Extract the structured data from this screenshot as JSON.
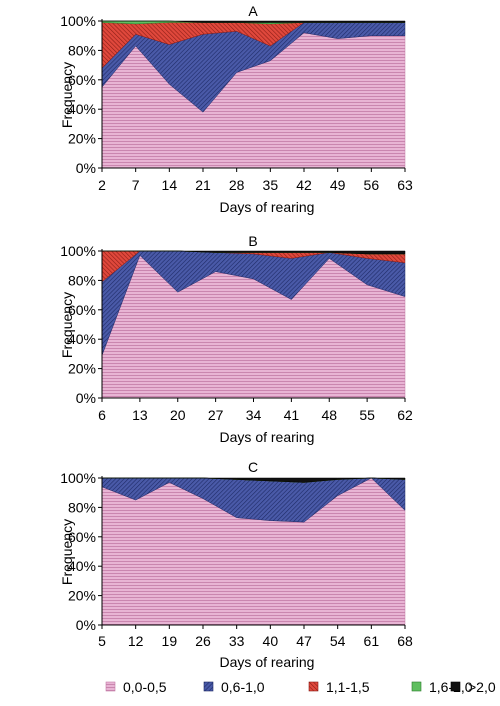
{
  "ylabel": "Frequency",
  "xlabel": "Days of rearing",
  "y_ticks": [
    "0%",
    "20%",
    "40%",
    "60%",
    "80%",
    "100%"
  ],
  "legend": [
    {
      "label": "0,0-0,5",
      "color": "#e8b4d4",
      "line": "#c37aa6",
      "pattern": "hlines"
    },
    {
      "label": "0,6-1,0",
      "color": "#4a5aa8",
      "line": "#1e2a66",
      "pattern": "diag-down"
    },
    {
      "label": "1,1-1,5",
      "color": "#e0483c",
      "line": "#8c1d16",
      "pattern": "diag-up"
    },
    {
      "label": "1,6-2,0",
      "color": "#5fbf5f",
      "line": "#2a7a2a",
      "pattern": "solid"
    },
    {
      "label": ">2,0",
      "color": "#111111",
      "line": "#000000",
      "pattern": "solid"
    }
  ],
  "chart_data": [
    {
      "type": "area",
      "title": "A",
      "x": [
        2,
        7,
        14,
        21,
        28,
        35,
        42,
        49,
        56,
        63
      ],
      "series": [
        {
          "name": "0,0-0,5",
          "values": [
            55,
            83,
            57,
            38,
            65,
            73,
            92,
            88,
            90,
            90
          ]
        },
        {
          "name": "0,6-1,0",
          "values": [
            13,
            8,
            27,
            53,
            28,
            10,
            7,
            11,
            9,
            9
          ]
        },
        {
          "name": "1,1-1,5",
          "values": [
            31,
            7,
            15,
            8,
            6,
            15,
            0,
            0,
            0,
            0
          ]
        },
        {
          "name": "1,6-2,0",
          "values": [
            1,
            2,
            1,
            0,
            0,
            1,
            0,
            0,
            0,
            0
          ]
        },
        {
          "name": ">2,0",
          "values": [
            0,
            0,
            0,
            1,
            1,
            1,
            1,
            1,
            1,
            1
          ]
        }
      ],
      "ylim": [
        0,
        100
      ]
    },
    {
      "type": "area",
      "title": "B",
      "x": [
        6,
        13,
        20,
        27,
        34,
        41,
        48,
        55,
        62
      ],
      "series": [
        {
          "name": "0,0-0,5",
          "values": [
            29,
            97,
            72,
            86,
            81,
            67,
            95,
            77,
            69
          ]
        },
        {
          "name": "0,6-1,0",
          "values": [
            50,
            3,
            28,
            13,
            17,
            28,
            4,
            18,
            23
          ]
        },
        {
          "name": "1,1-1,5",
          "values": [
            21,
            0,
            0,
            0,
            1,
            4,
            0,
            3,
            6
          ]
        },
        {
          "name": "1,6-2,0",
          "values": [
            0,
            0,
            0,
            0,
            0,
            0,
            0,
            0,
            0
          ]
        },
        {
          "name": ">2,0",
          "values": [
            0,
            0,
            0,
            1,
            1,
            1,
            1,
            2,
            2
          ]
        }
      ],
      "ylim": [
        0,
        100
      ]
    },
    {
      "type": "area",
      "title": "C",
      "x": [
        5,
        12,
        19,
        26,
        33,
        40,
        47,
        54,
        61,
        68
      ],
      "series": [
        {
          "name": "0,0-0,5",
          "values": [
            94,
            85,
            97,
            86,
            73,
            71,
            70,
            88,
            100,
            78
          ]
        },
        {
          "name": "0,6-1,0",
          "values": [
            6,
            15,
            3,
            14,
            26,
            27,
            27,
            11,
            0,
            21
          ]
        },
        {
          "name": "1,1-1,5",
          "values": [
            0,
            0,
            0,
            0,
            0,
            0,
            0,
            0,
            0,
            0
          ]
        },
        {
          "name": "1,6-2,0",
          "values": [
            0,
            0,
            0,
            0,
            0,
            0,
            0,
            0,
            0,
            0
          ]
        },
        {
          "name": ">2,0",
          "values": [
            0,
            0,
            0,
            0,
            1,
            2,
            3,
            1,
            0,
            1
          ]
        }
      ],
      "ylim": [
        0,
        100
      ]
    }
  ]
}
